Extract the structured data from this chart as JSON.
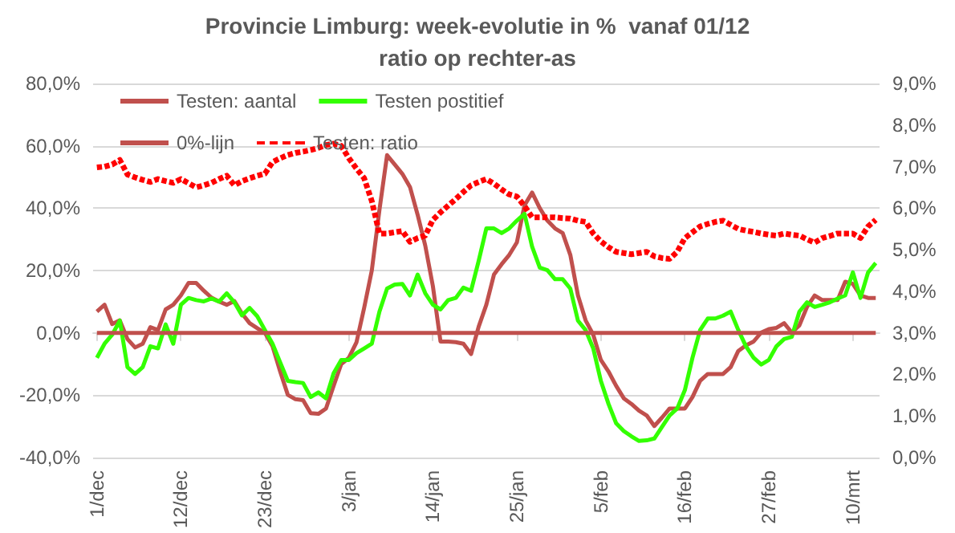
{
  "chart_data": {
    "type": "line",
    "title": "Provincie Limburg: week-evolutie in %  vanaf 01/12",
    "subtitle": "ratio op rechter-as",
    "categories": [
      "1/dec",
      null,
      null,
      null,
      null,
      null,
      null,
      null,
      null,
      null,
      null,
      "12/dec",
      null,
      null,
      null,
      null,
      null,
      null,
      null,
      null,
      null,
      null,
      "23/dec",
      null,
      null,
      null,
      null,
      null,
      null,
      null,
      null,
      null,
      null,
      "3/jan",
      null,
      null,
      null,
      null,
      null,
      null,
      null,
      null,
      null,
      null,
      "14/jan",
      null,
      null,
      null,
      null,
      null,
      null,
      null,
      null,
      null,
      null,
      "25/jan",
      null,
      null,
      null,
      null,
      null,
      null,
      null,
      null,
      null,
      null,
      "5/feb",
      null,
      null,
      null,
      null,
      null,
      null,
      null,
      null,
      null,
      null,
      "16/feb",
      null,
      null,
      null,
      null,
      null,
      null,
      null,
      null,
      null,
      null,
      "27/feb",
      null,
      null,
      null,
      null,
      null,
      null,
      null,
      null,
      null,
      null,
      "10/mrt",
      null,
      null,
      null
    ],
    "series": [
      {
        "name": "Testen: aantal",
        "color": "#c0504d",
        "values": [
          6.8,
          9,
          2.8,
          4,
          -2,
          -4.7,
          -3.5,
          1.8,
          0.9,
          7.5,
          9,
          12,
          16,
          16,
          13.5,
          11.3,
          10,
          9,
          10.2,
          6.2,
          3.1,
          1.5,
          0,
          -4.3,
          -12.4,
          -19.9,
          -21.3,
          -21.6,
          -25.8,
          -26,
          -24.3,
          -17,
          -10,
          -8,
          -3,
          8,
          20,
          39.4,
          57,
          54,
          51,
          46.8,
          37.9,
          28,
          15,
          -2.8,
          -2.8,
          -3,
          -3.5,
          -6.8,
          2,
          9,
          18.7,
          22,
          25,
          29,
          40.9,
          45,
          40,
          36,
          33.5,
          32,
          25,
          12,
          4,
          -0.6,
          -8.7,
          -12.4,
          -17,
          -21,
          -22.8,
          -25,
          -26.5,
          -29.9,
          -27.2,
          -24.3,
          -24.3,
          -24.3,
          -20.6,
          -15.4,
          -13.2,
          -13.2,
          -13.2,
          -11,
          -5.8,
          -4,
          -2.8,
          0.1,
          1.2,
          1.6,
          3.1,
          0.1,
          2.4,
          8.3,
          12,
          10.5,
          10.5,
          10.5,
          16.4,
          15.7,
          12,
          11.2,
          11.2
        ]
      },
      {
        "name": "Testen postitief",
        "color": "#33ff00",
        "values": [
          -8,
          -3.5,
          -0.6,
          3.9,
          -11,
          -13.2,
          -11,
          -4.3,
          -5,
          2.7,
          -3.5,
          9,
          11.2,
          10.5,
          10.1,
          11,
          10,
          12.7,
          9.8,
          5.6,
          8,
          5.3,
          0.9,
          -3.5,
          -9.5,
          -15.4,
          -15.8,
          -16.1,
          -20.6,
          -19.1,
          -21,
          -13,
          -8.7,
          -8.7,
          -6.5,
          -5,
          -3.5,
          6.8,
          14.2,
          15.5,
          15.7,
          12,
          18.7,
          12.7,
          9,
          7.5,
          10.5,
          11.2,
          14.5,
          13.5,
          23.1,
          33.5,
          33.5,
          32,
          33.5,
          36,
          38.2,
          27.6,
          20.9,
          20.1,
          17.2,
          17.2,
          14.2,
          3.9,
          0.9,
          -5,
          -15.4,
          -22.8,
          -29,
          -31.5,
          -33.2,
          -34.7,
          -34.5,
          -33.9,
          -30.2,
          -26.5,
          -24.3,
          -18.4,
          -8,
          0.9,
          4.6,
          4.6,
          5.5,
          6.8,
          0.9,
          -4.3,
          -8,
          -10.2,
          -8.7,
          -4.3,
          -2,
          -1.3,
          6.8,
          9.8,
          8.3,
          9,
          9.8,
          11,
          12,
          19.4,
          11.2,
          19.4,
          22.4
        ]
      },
      {
        "name": "0%-lijn",
        "color": "#c0504d",
        "values": [
          0,
          0,
          0,
          0,
          0,
          0,
          0,
          0,
          0,
          0,
          0,
          0,
          0,
          0,
          0,
          0,
          0,
          0,
          0,
          0,
          0,
          0,
          0,
          0,
          0,
          0,
          0,
          0,
          0,
          0,
          0,
          0,
          0,
          0,
          0,
          0,
          0,
          0,
          0,
          0,
          0,
          0,
          0,
          0,
          0,
          0,
          0,
          0,
          0,
          0,
          0,
          0,
          0,
          0,
          0,
          0,
          0,
          0,
          0,
          0,
          0,
          0,
          0,
          0,
          0,
          0,
          0,
          0,
          0,
          0,
          0,
          0,
          0,
          0,
          0,
          0,
          0,
          0,
          0,
          0,
          0,
          0,
          0,
          0,
          0,
          0,
          0,
          0,
          0,
          0,
          0,
          0,
          0,
          0,
          0,
          0,
          0,
          0,
          0,
          0,
          0,
          0,
          0
        ]
      },
      {
        "name": "Testen: ratio",
        "color": "#ff0000",
        "axis": "y2",
        "line_style": "dashed",
        "values": [
          6.98,
          7.0,
          7.05,
          7.16,
          6.81,
          6.74,
          6.68,
          6.63,
          6.7,
          6.65,
          6.61,
          6.7,
          6.6,
          6.5,
          6.55,
          6.61,
          6.7,
          6.78,
          6.55,
          6.65,
          6.72,
          6.78,
          6.83,
          7.11,
          7.2,
          7.28,
          7.33,
          7.36,
          7.4,
          7.45,
          7.52,
          7.55,
          7.5,
          7.2,
          6.95,
          6.72,
          6.17,
          5.39,
          5.39,
          5.42,
          5.45,
          5.19,
          5.28,
          5.34,
          5.72,
          5.9,
          6.06,
          6.22,
          6.39,
          6.55,
          6.63,
          6.7,
          6.59,
          6.45,
          6.33,
          6.28,
          6.05,
          5.78,
          5.78,
          5.78,
          5.78,
          5.76,
          5.75,
          5.7,
          5.67,
          5.39,
          5.2,
          5.06,
          4.95,
          4.92,
          4.89,
          4.92,
          4.95,
          4.84,
          4.8,
          4.78,
          4.95,
          5.28,
          5.42,
          5.56,
          5.62,
          5.67,
          5.7,
          5.6,
          5.5,
          5.46,
          5.43,
          5.39,
          5.36,
          5.34,
          5.39,
          5.36,
          5.34,
          5.25,
          5.17,
          5.28,
          5.33,
          5.39,
          5.39,
          5.39,
          5.28,
          5.56,
          5.72
        ]
      }
    ],
    "ylim": [
      -40,
      80
    ],
    "yticks": [
      {
        "value": -40,
        "label": "-40,0%"
      },
      {
        "value": -20,
        "label": "-20,0%"
      },
      {
        "value": 0,
        "label": "0,0%"
      },
      {
        "value": 20,
        "label": "20,0%"
      },
      {
        "value": 40,
        "label": "40,0%"
      },
      {
        "value": 60,
        "label": "60,0%"
      },
      {
        "value": 80,
        "label": "80,0%"
      }
    ],
    "y2lim": [
      0,
      9
    ],
    "y2ticks": [
      {
        "value": 0,
        "label": "0,0%"
      },
      {
        "value": 1,
        "label": "1,0%"
      },
      {
        "value": 2,
        "label": "2,0%"
      },
      {
        "value": 3,
        "label": "3,0%"
      },
      {
        "value": 4,
        "label": "4,0%"
      },
      {
        "value": 5,
        "label": "5,0%"
      },
      {
        "value": 6,
        "label": "6,0%"
      },
      {
        "value": 7,
        "label": "7,0%"
      },
      {
        "value": 8,
        "label": "8,0%"
      },
      {
        "value": 9,
        "label": "9,0%"
      }
    ],
    "grid": "y",
    "legend": "top left",
    "line_style": "solid"
  }
}
